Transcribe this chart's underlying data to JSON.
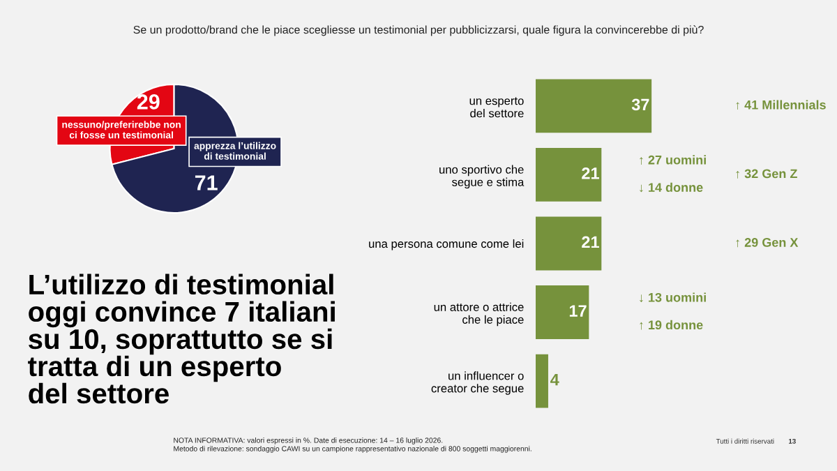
{
  "chart_data": [
    {
      "type": "pie",
      "title": "Se un prodotto/brand che le piace scegliesse un testimonial per pubblicizzarsi, quale figura la convincerebbe di più?",
      "categories": [
        "nessuno/preferirebbe non\nci fosse un testimonial",
        "apprezza l’utilizzo\ndi testimonial"
      ],
      "values": [
        29,
        71
      ],
      "colors": [
        "#e30613",
        "#1f2451"
      ],
      "data_labels": true,
      "annotations": [
        "L’utilizzo di testimonial\noggi convince 7 italiani\nsu 10, soprattutto se si\ntratta di un esperto\ndel settore",
        "NOTA INFORMATIVA: valori espressi in %. Date di esecuzione: 14 – 16 luglio 2026.\nMetodo di rilevazione: sondaggio CAWI su un campione rappresentativo nazionale di 800 soggetti maggiorenni.",
        "Tutti i diritti riservati",
        "13"
      ]
    },
    {
      "type": "bar",
      "orientation": "horizontal",
      "categories": [
        "un esperto\ndel settore",
        "uno sportivo che\nsegue e stima",
        "una persona comune come lei",
        "un attore o attrice\nche le piace",
        "un influencer o\ncreator che segue"
      ],
      "values": [
        37,
        21,
        21,
        17,
        4
      ],
      "color": "#76923c",
      "data_labels": true,
      "annotations": [
        "↑ 41 Millennials",
        "↑ 27 uomini",
        "↓ 14 donne",
        "↑ 32 Gen Z",
        "↑ 29 Gen X",
        "↓ 13 uomini",
        "↑ 19 donne"
      ]
    }
  ]
}
